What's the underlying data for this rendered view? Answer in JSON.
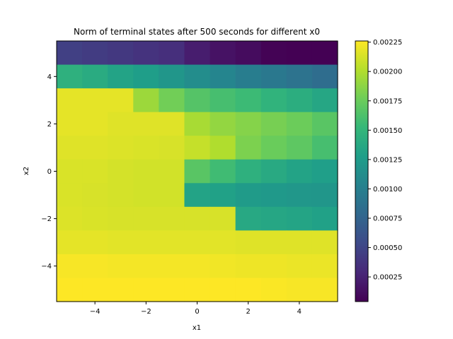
{
  "chart_data": {
    "type": "heatmap",
    "title": "Norm of terminal states after 500 seconds for different x0",
    "xlabel": "x1",
    "ylabel": "x2",
    "colormap": "viridis",
    "x_centers": [
      -5,
      -4,
      -3,
      -2,
      -1,
      0,
      1,
      2,
      3,
      4,
      5
    ],
    "y_centers": [
      5,
      4,
      3,
      2,
      1,
      0,
      -1,
      -2,
      -3,
      -4,
      -5
    ],
    "xlim": [
      -5.5,
      5.5
    ],
    "ylim": [
      -5.5,
      5.5
    ],
    "x_ticks": [
      -4,
      -2,
      0,
      2,
      4
    ],
    "x_tick_labels": [
      "−4",
      "−2",
      "0",
      "2",
      "4"
    ],
    "y_ticks": [
      4,
      2,
      0,
      -2,
      -4
    ],
    "y_tick_labels": [
      "4",
      "2",
      "0",
      "−2",
      "−4"
    ],
    "values": [
      [
        0.00046,
        0.00043,
        0.0004,
        0.00037,
        0.00034,
        0.00022,
        0.00015,
        0.00011,
        5e-05,
        4e-05,
        4e-05
      ],
      [
        0.00145,
        0.0014,
        0.00132,
        0.00127,
        0.0012,
        0.00112,
        0.00105,
        0.00098,
        0.00093,
        0.00088,
        0.00083
      ],
      [
        0.00218,
        0.00218,
        0.00218,
        0.00193,
        0.00178,
        0.00166,
        0.0016,
        0.00155,
        0.00148,
        0.00142,
        0.00135
      ],
      [
        0.00218,
        0.00218,
        0.00216,
        0.00216,
        0.00216,
        0.00197,
        0.0019,
        0.00185,
        0.0018,
        0.00176,
        0.00168
      ],
      [
        0.00216,
        0.00216,
        0.00215,
        0.00214,
        0.00213,
        0.00207,
        0.002,
        0.00182,
        0.00175,
        0.0017,
        0.0016
      ],
      [
        0.00214,
        0.00214,
        0.00212,
        0.00211,
        0.00211,
        0.00168,
        0.00157,
        0.00145,
        0.00138,
        0.00132,
        0.00128
      ],
      [
        0.00214,
        0.00213,
        0.00212,
        0.00211,
        0.00211,
        0.00132,
        0.0013,
        0.00125,
        0.00123,
        0.00121,
        0.0012
      ],
      [
        0.00215,
        0.00214,
        0.00213,
        0.00213,
        0.00213,
        0.00213,
        0.00213,
        0.00137,
        0.00135,
        0.00133,
        0.0013
      ],
      [
        0.00218,
        0.00218,
        0.00217,
        0.00217,
        0.00217,
        0.00217,
        0.00217,
        0.00216,
        0.00216,
        0.00216,
        0.00216
      ],
      [
        0.00224,
        0.00224,
        0.00223,
        0.00223,
        0.00223,
        0.00223,
        0.00222,
        0.00221,
        0.00221,
        0.0022,
        0.0022
      ],
      [
        0.00226,
        0.00226,
        0.00226,
        0.00226,
        0.00226,
        0.00226,
        0.00226,
        0.00226,
        0.00225,
        0.00224,
        0.00224
      ]
    ],
    "colorbar": {
      "vmin": 4e-05,
      "vmax": 0.00226,
      "ticks": [
        0.00025,
        0.0005,
        0.00075,
        0.001,
        0.00125,
        0.0015,
        0.00175,
        0.002,
        0.00225
      ],
      "tick_labels": [
        "0.00025",
        "0.00050",
        "0.00075",
        "0.00100",
        "0.00125",
        "0.00150",
        "0.00175",
        "0.00200",
        "0.00225"
      ]
    }
  }
}
